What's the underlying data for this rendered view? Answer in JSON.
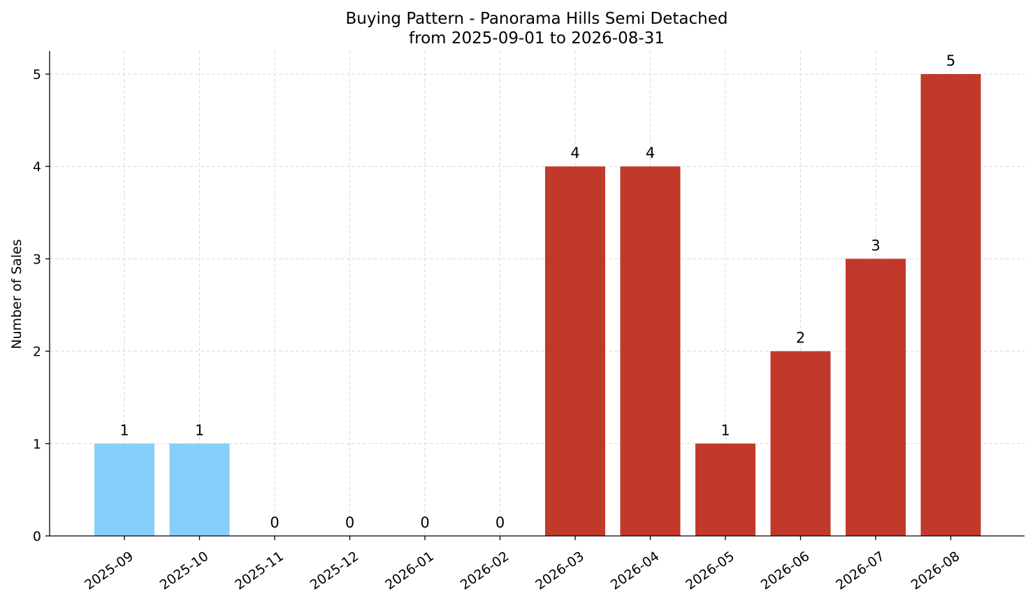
{
  "chart_data": {
    "type": "bar",
    "title": "Buying Pattern - Panorama Hills Semi Detached",
    "subtitle": "from 2025-09-01 to 2026-08-31",
    "xlabel": "",
    "ylabel": "Number of Sales",
    "categories": [
      "2025-09",
      "2025-10",
      "2025-11",
      "2025-12",
      "2026-01",
      "2026-02",
      "2026-03",
      "2026-04",
      "2026-05",
      "2026-06",
      "2026-07",
      "2026-08"
    ],
    "values": [
      1,
      1,
      0,
      0,
      0,
      0,
      4,
      4,
      1,
      2,
      3,
      5
    ],
    "bar_colors": [
      "#87cefa",
      "#87cefa",
      "#87cefa",
      "#87cefa",
      "#87cefa",
      "#87cefa",
      "#c0392b",
      "#c0392b",
      "#c0392b",
      "#c0392b",
      "#c0392b",
      "#c0392b"
    ],
    "yticks": [
      0,
      1,
      2,
      3,
      4,
      5
    ],
    "ylim": [
      0,
      5.25
    ],
    "grid": true,
    "data_labels": true
  }
}
